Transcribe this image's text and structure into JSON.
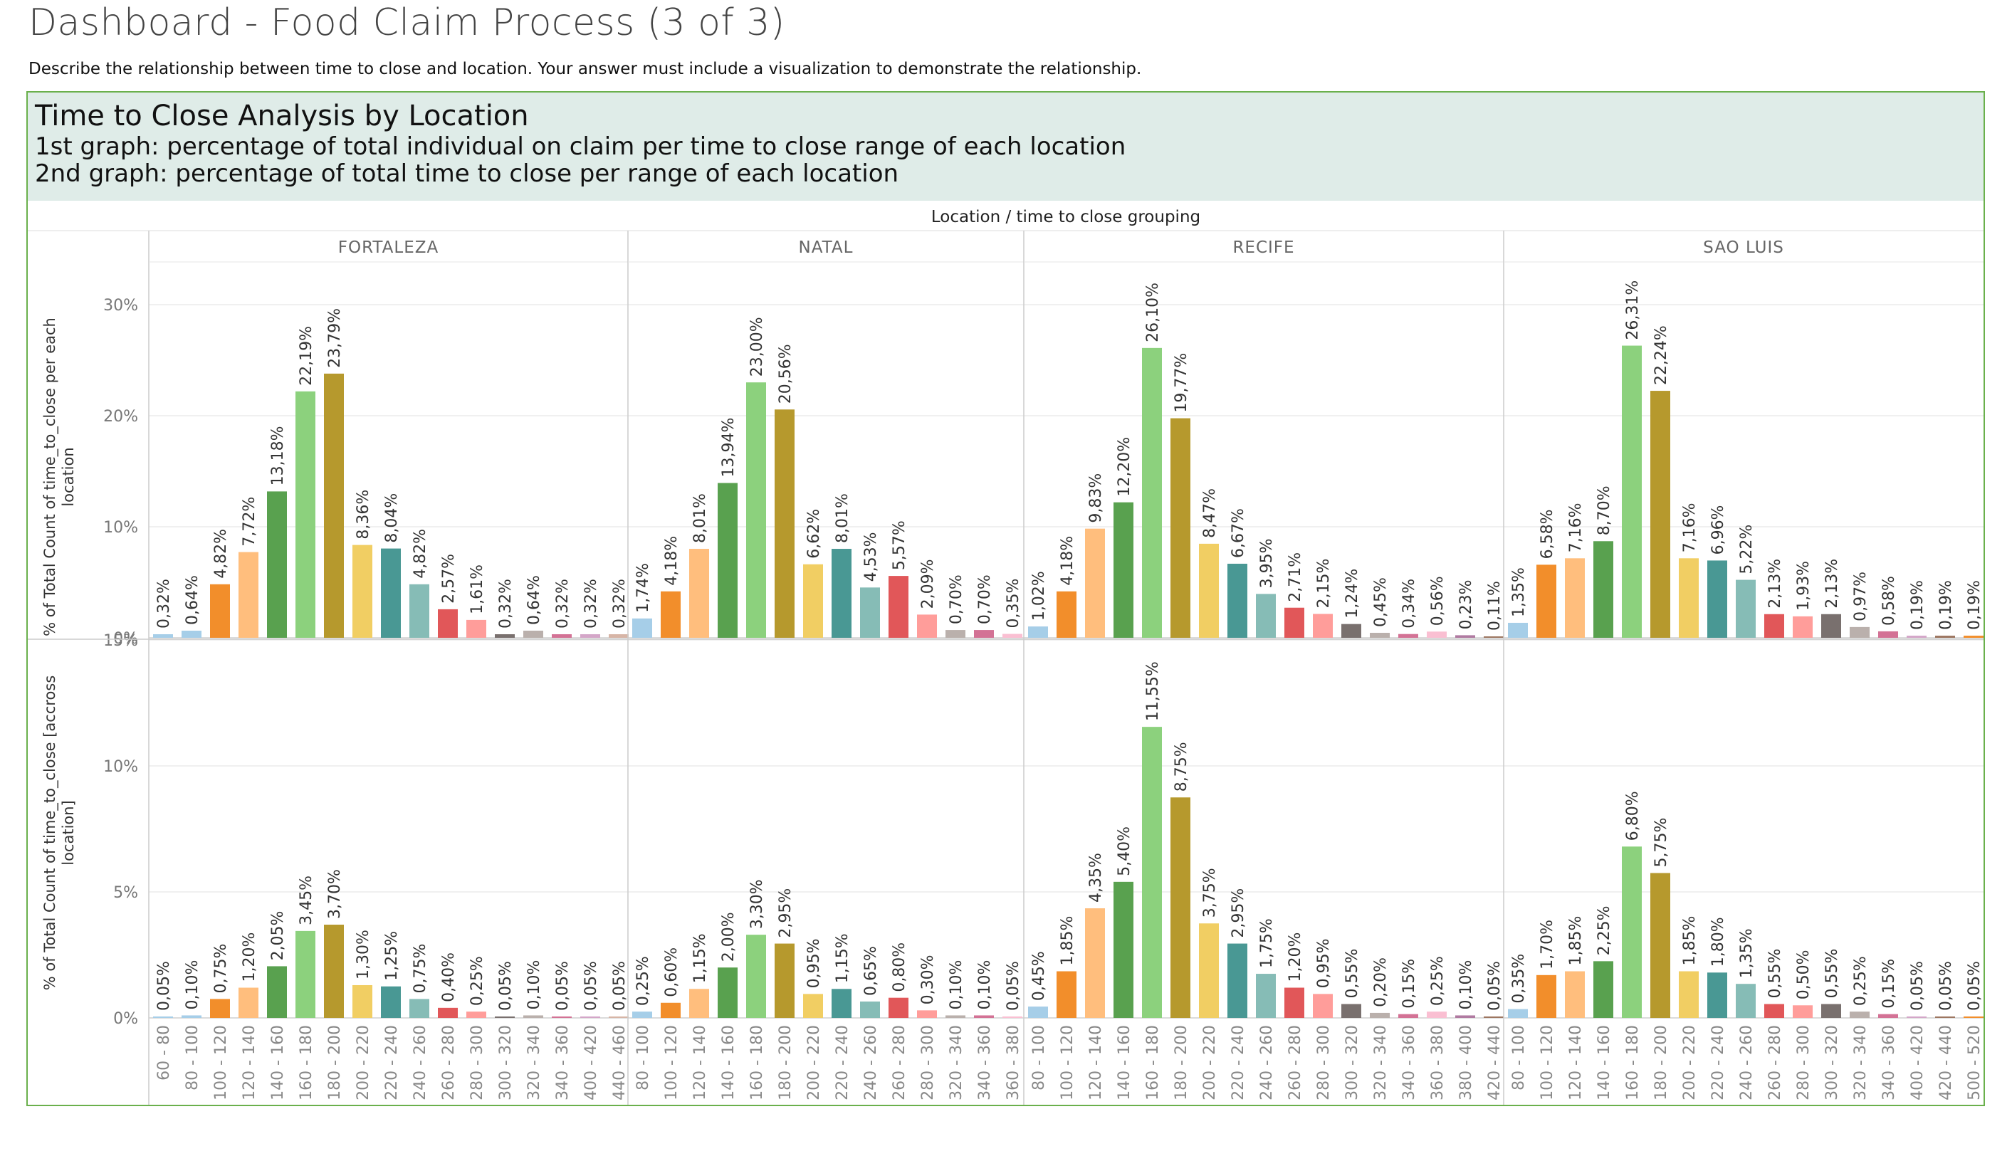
{
  "page": {
    "title": "Dashboard - Food Claim Process (3 of 3)",
    "question": "Describe the relationship between time to close and location. Your answer must include a visualization to demonstrate the relationship."
  },
  "banner": {
    "title": "Time to Close Analysis by Location",
    "line1": "1st graph: percentage of total individual on claim per time to close range of each location",
    "line2": "2nd graph: percentage of total time to close per range of each location"
  },
  "colors": {
    "frame_border": "#6ab04c",
    "banner_bg": "#dfece8",
    "gridline": "#ececec",
    "pane_divider": "#cccccc"
  },
  "chart_data": {
    "type": "bar",
    "header": "Location  /  time to close grouping",
    "ylabel_top": "% of Total Count of time_to_close per each location",
    "ylabel_bottom": "% of Total Count of time_to_close [accross location]",
    "top_ticks": [
      "30%",
      "20%",
      "10%",
      "0%"
    ],
    "top_ylim": [
      0,
      30
    ],
    "bottom_ticks": [
      "15%",
      "10%",
      "5%",
      "0%"
    ],
    "bottom_ylim": [
      0,
      15
    ],
    "grid": true,
    "palette": [
      "#a6cee8",
      "#f28e2b",
      "#ffbe7d",
      "#59a14f",
      "#8cd17d",
      "#b6992d",
      "#f1ce63",
      "#499894",
      "#86bcb6",
      "#e15759",
      "#ff9d9a",
      "#79706e",
      "#bab0ac",
      "#d37295",
      "#fabfd2",
      "#b07aa1",
      "#d4a6c8",
      "#9d7660",
      "#d7b5a6",
      "#4e79a7",
      "#a0cbe8",
      "#f28e2b"
    ],
    "bin_starts": [
      60,
      80,
      100,
      120,
      140,
      160,
      180,
      200,
      220,
      240,
      260,
      280,
      300,
      320,
      340,
      360,
      380,
      400,
      420,
      440,
      460,
      480,
      500
    ],
    "locations": [
      {
        "name": "FORTALEZA",
        "categories": [
          "60 - 80",
          "80 - 100",
          "100 - 120",
          "120 - 140",
          "140 - 160",
          "160 - 180",
          "180 - 200",
          "200 - 220",
          "220 - 240",
          "240 - 260",
          "260 - 280",
          "280 - 300",
          "300 - 320",
          "320 - 340",
          "340 - 360",
          "400 - 420",
          "440 - 460"
        ],
        "top_values": [
          0.32,
          0.64,
          4.82,
          7.72,
          13.18,
          22.19,
          23.79,
          8.36,
          8.04,
          4.82,
          2.57,
          1.61,
          0.32,
          0.64,
          0.32,
          0.32,
          0.32
        ],
        "top_labels": [
          "0,32%",
          "0,64%",
          "4,82%",
          "7,72%",
          "13,18%",
          "22,19%",
          "23,79%",
          "8,36%",
          "8,04%",
          "4,82%",
          "2,57%",
          "1,61%",
          "0,32%",
          "0,64%",
          "0,32%",
          "0,32%",
          "0,32%"
        ],
        "bottom_values": [
          0.05,
          0.1,
          0.75,
          1.2,
          2.05,
          3.45,
          3.7,
          1.3,
          1.25,
          0.75,
          0.4,
          0.25,
          0.05,
          0.1,
          0.05,
          0.05,
          0.05
        ],
        "bottom_labels": [
          "0,05%",
          "0,10%",
          "0,75%",
          "1,20%",
          "2,05%",
          "3,45%",
          "3,70%",
          "1,30%",
          "1,25%",
          "0,75%",
          "0,40%",
          "0,25%",
          "0,05%",
          "0,10%",
          "0,05%",
          "0,05%",
          "0,05%"
        ]
      },
      {
        "name": "NATAL",
        "categories": [
          "80 - 100",
          "100 - 120",
          "120 - 140",
          "140 - 160",
          "160 - 180",
          "180 - 200",
          "200 - 220",
          "220 - 240",
          "240 - 260",
          "260 - 280",
          "280 - 300",
          "320 - 340",
          "340 - 360",
          "360 - 380"
        ],
        "top_values": [
          1.74,
          4.18,
          8.01,
          13.94,
          23.0,
          20.56,
          6.62,
          8.01,
          4.53,
          5.57,
          2.09,
          0.7,
          0.7,
          0.35
        ],
        "top_labels": [
          "1,74%",
          "4,18%",
          "8,01%",
          "13,94%",
          "23,00%",
          "20,56%",
          "6,62%",
          "8,01%",
          "4,53%",
          "5,57%",
          "2,09%",
          "0,70%",
          "0,70%",
          "0,35%"
        ],
        "bottom_values": [
          0.25,
          0.6,
          1.15,
          2.0,
          3.3,
          2.95,
          0.95,
          1.15,
          0.65,
          0.8,
          0.3,
          0.1,
          0.1,
          0.05
        ],
        "bottom_labels": [
          "0,25%",
          "0,60%",
          "1,15%",
          "2,00%",
          "3,30%",
          "2,95%",
          "0,95%",
          "1,15%",
          "0,65%",
          "0,80%",
          "0,30%",
          "0,10%",
          "0,10%",
          "0,05%"
        ]
      },
      {
        "name": "RECIFE",
        "categories": [
          "80 - 100",
          "100 - 120",
          "120 - 140",
          "140 - 160",
          "160 - 180",
          "180 - 200",
          "200 - 220",
          "220 - 240",
          "240 - 260",
          "260 - 280",
          "280 - 300",
          "300 - 320",
          "320 - 340",
          "340 - 360",
          "360 - 380",
          "380 - 400",
          "420 - 440"
        ],
        "top_values": [
          1.02,
          4.18,
          9.83,
          12.2,
          26.1,
          19.77,
          8.47,
          6.67,
          3.95,
          2.71,
          2.15,
          1.24,
          0.45,
          0.34,
          0.56,
          0.23,
          0.11
        ],
        "top_labels": [
          "1,02%",
          "4,18%",
          "9,83%",
          "12,20%",
          "26,10%",
          "19,77%",
          "8,47%",
          "6,67%",
          "3,95%",
          "2,71%",
          "2,15%",
          "1,24%",
          "0,45%",
          "0,34%",
          "0,56%",
          "0,23%",
          "0,11%"
        ],
        "bottom_values": [
          0.45,
          1.85,
          4.35,
          5.4,
          11.55,
          8.75,
          3.75,
          2.95,
          1.75,
          1.2,
          0.95,
          0.55,
          0.2,
          0.15,
          0.25,
          0.1,
          0.05
        ],
        "bottom_labels": [
          "0,45%",
          "1,85%",
          "4,35%",
          "5,40%",
          "11,55%",
          "8,75%",
          "3,75%",
          "2,95%",
          "1,75%",
          "1,20%",
          "0,95%",
          "0,55%",
          "0,20%",
          "0,15%",
          "0,25%",
          "0,10%",
          "0,05%"
        ]
      },
      {
        "name": "SAO LUIS",
        "categories": [
          "80 - 100",
          "100 - 120",
          "120 - 140",
          "140 - 160",
          "160 - 180",
          "180 - 200",
          "200 - 220",
          "220 - 240",
          "240 - 260",
          "260 - 280",
          "280 - 300",
          "300 - 320",
          "320 - 340",
          "340 - 360",
          "400 - 420",
          "420 - 440",
          "500 - 520"
        ],
        "top_values": [
          1.35,
          6.58,
          7.16,
          8.7,
          26.31,
          22.24,
          7.16,
          6.96,
          5.22,
          2.13,
          1.93,
          2.13,
          0.97,
          0.58,
          0.19,
          0.19,
          0.19
        ],
        "top_labels": [
          "1,35%",
          "6,58%",
          "7,16%",
          "8,70%",
          "26,31%",
          "22,24%",
          "7,16%",
          "6,96%",
          "5,22%",
          "2,13%",
          "1,93%",
          "2,13%",
          "0,97%",
          "0,58%",
          "0,19%",
          "0,19%",
          "0,19%"
        ],
        "bottom_values": [
          0.35,
          1.7,
          1.85,
          2.25,
          6.8,
          5.75,
          1.85,
          1.8,
          1.35,
          0.55,
          0.5,
          0.55,
          0.25,
          0.15,
          0.05,
          0.05,
          0.05
        ],
        "bottom_labels": [
          "0,35%",
          "1,70%",
          "1,85%",
          "2,25%",
          "6,80%",
          "5,75%",
          "1,85%",
          "1,80%",
          "1,35%",
          "0,55%",
          "0,50%",
          "0,55%",
          "0,25%",
          "0,15%",
          "0,05%",
          "0,05%",
          "0,05%"
        ]
      }
    ]
  }
}
